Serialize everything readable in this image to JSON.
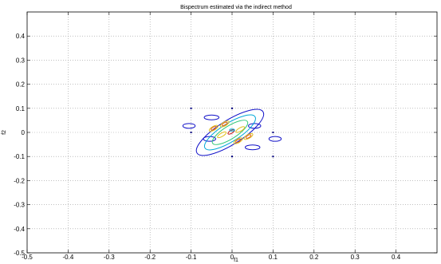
{
  "chart_data": {
    "type": "contour",
    "title": "Bispectrum estimated via the indirect method",
    "xlabel": "f1",
    "ylabel": "f2",
    "xlim": [
      -0.5,
      0.5
    ],
    "ylim": [
      -0.5,
      0.5
    ],
    "xticks": [
      -0.5,
      -0.4,
      -0.3,
      -0.2,
      -0.1,
      0,
      0.1,
      0.2,
      0.3,
      0.4
    ],
    "xtick_labels": [
      "-0.5",
      "-0.4",
      "-0.3",
      "-0.2",
      "-0.1",
      "0",
      "0.1",
      "0.2",
      "0.3",
      "0.4"
    ],
    "yticks": [
      -0.5,
      -0.4,
      -0.3,
      -0.2,
      -0.1,
      0,
      0.1,
      0.2,
      0.3,
      0.4
    ],
    "ytick_labels": [
      "-0.5",
      "-0.4",
      "-0.3",
      "-0.2",
      "-0.1",
      "0",
      "0.1",
      "0.2",
      "0.3",
      "0.4"
    ],
    "grid": true,
    "grid_style": "dotted",
    "colors": {
      "outer": "#1010c8",
      "level2": "#00a8d8",
      "level3": "#30c878",
      "level4": "#e0c020",
      "level5": "#e06018",
      "level6": "#c01818",
      "marker": "#000080"
    },
    "contours": [
      {
        "level": 1,
        "color_key": "outer",
        "cx": -0.005,
        "cy": 0.0,
        "rx": 0.095,
        "ry": 0.05,
        "rotation_deg": -32
      },
      {
        "level": 1,
        "color_key": "outer",
        "cx": -0.05,
        "cy": 0.062,
        "rx": 0.018,
        "ry": 0.01,
        "rotation_deg": 0
      },
      {
        "level": 1,
        "color_key": "outer",
        "cx": 0.05,
        "cy": -0.062,
        "rx": 0.018,
        "ry": 0.01,
        "rotation_deg": 0
      },
      {
        "level": 1,
        "color_key": "outer",
        "cx": -0.105,
        "cy": 0.027,
        "rx": 0.015,
        "ry": 0.01,
        "rotation_deg": 0
      },
      {
        "level": 1,
        "color_key": "outer",
        "cx": 0.105,
        "cy": -0.027,
        "rx": 0.015,
        "ry": 0.01,
        "rotation_deg": 0
      },
      {
        "level": 1,
        "color_key": "outer",
        "cx": -0.055,
        "cy": -0.027,
        "rx": 0.015,
        "ry": 0.01,
        "rotation_deg": 0
      },
      {
        "level": 1,
        "color_key": "outer",
        "cx": 0.055,
        "cy": 0.027,
        "rx": 0.015,
        "ry": 0.01,
        "rotation_deg": 0
      },
      {
        "level": 2,
        "color_key": "level2",
        "cx": -0.005,
        "cy": 0.0,
        "rx": 0.072,
        "ry": 0.038,
        "rotation_deg": -32
      },
      {
        "level": 3,
        "color_key": "level3",
        "cx": -0.005,
        "cy": 0.0,
        "rx": 0.05,
        "ry": 0.027,
        "rotation_deg": -32
      },
      {
        "level": 4,
        "color_key": "level4",
        "cx": -0.045,
        "cy": 0.017,
        "rx": 0.012,
        "ry": 0.008,
        "rotation_deg": -30
      },
      {
        "level": 4,
        "color_key": "level4",
        "cx": 0.04,
        "cy": -0.017,
        "rx": 0.012,
        "ry": 0.008,
        "rotation_deg": -30
      },
      {
        "level": 4,
        "color_key": "level4",
        "cx": -0.018,
        "cy": 0.035,
        "rx": 0.012,
        "ry": 0.008,
        "rotation_deg": -30
      },
      {
        "level": 4,
        "color_key": "level4",
        "cx": 0.015,
        "cy": -0.035,
        "rx": 0.012,
        "ry": 0.008,
        "rotation_deg": -30
      },
      {
        "level": 4,
        "color_key": "level4",
        "cx": -0.025,
        "cy": -0.01,
        "rx": 0.012,
        "ry": 0.007,
        "rotation_deg": -30
      },
      {
        "level": 4,
        "color_key": "level4",
        "cx": 0.02,
        "cy": 0.012,
        "rx": 0.012,
        "ry": 0.007,
        "rotation_deg": -30
      },
      {
        "level": 5,
        "color_key": "level5",
        "cx": -0.045,
        "cy": 0.017,
        "rx": 0.007,
        "ry": 0.005,
        "rotation_deg": -30
      },
      {
        "level": 5,
        "color_key": "level5",
        "cx": 0.04,
        "cy": -0.017,
        "rx": 0.007,
        "ry": 0.005,
        "rotation_deg": -30
      },
      {
        "level": 5,
        "color_key": "level5",
        "cx": -0.018,
        "cy": 0.035,
        "rx": 0.007,
        "ry": 0.005,
        "rotation_deg": -30
      },
      {
        "level": 5,
        "color_key": "level5",
        "cx": 0.015,
        "cy": -0.035,
        "rx": 0.007,
        "ry": 0.005,
        "rotation_deg": -30
      },
      {
        "level": 5,
        "color_key": "level6",
        "cx": -0.002,
        "cy": 0.002,
        "rx": 0.009,
        "ry": 0.006,
        "rotation_deg": -30
      },
      {
        "level": 5,
        "color_key": "level2",
        "cx": 0.0,
        "cy": 0.01,
        "rx": 0.006,
        "ry": 0.004,
        "rotation_deg": 0
      }
    ],
    "markers": [
      {
        "x": -0.1,
        "y": 0.1
      },
      {
        "x": 0.0,
        "y": 0.1
      },
      {
        "x": -0.1,
        "y": 0.0
      },
      {
        "x": 0.1,
        "y": 0.0
      },
      {
        "x": 0.0,
        "y": -0.1
      },
      {
        "x": 0.1,
        "y": -0.1
      }
    ]
  }
}
